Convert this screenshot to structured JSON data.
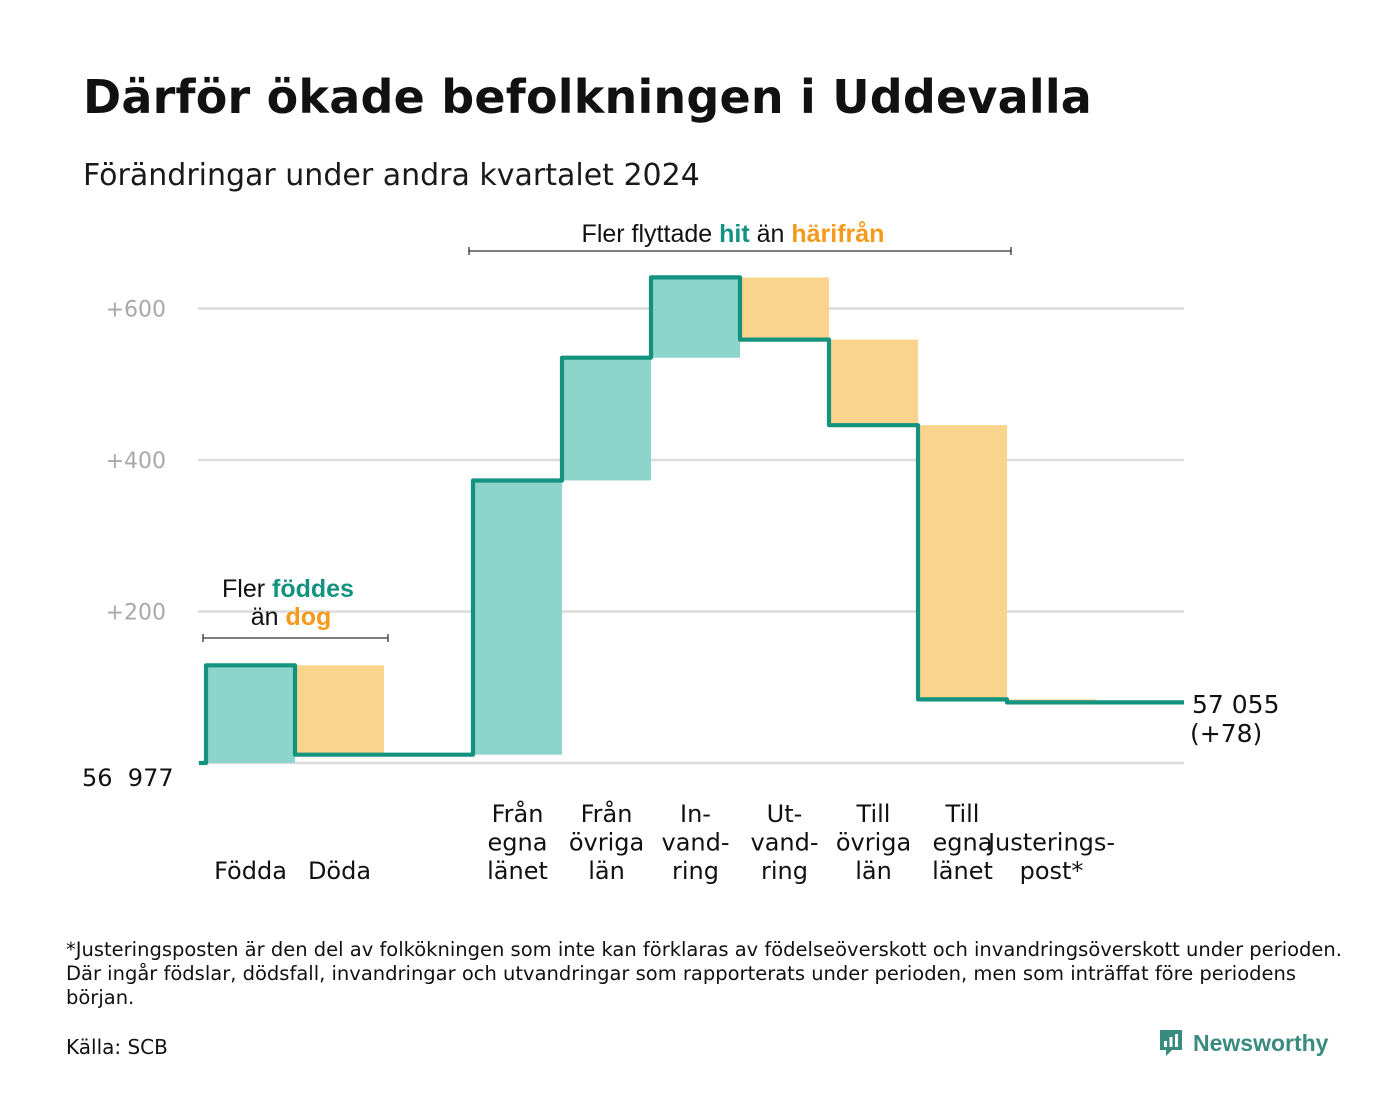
{
  "header": {
    "title": "Därför ökade befolkningen i Uddevalla",
    "subtitle": "Förändringar under andra kvartalet 2024"
  },
  "annotations": {
    "births_line1_prefix": "Fler ",
    "births_line1_highlight": "föddes",
    "births_line2_prefix": "än ",
    "births_line2_highlight": "dog",
    "migration_prefix": "Fler flyttade ",
    "migration_highlight_in": "hit",
    "migration_middle": " än ",
    "migration_highlight_out": "härifrån"
  },
  "chart_data": {
    "type": "bar",
    "subtype": "waterfall",
    "start_value": 56977,
    "start_label": "56  977",
    "end_label_line1": "57 055",
    "end_label_line2": "(+78)",
    "y_axis": {
      "ticks": [
        200,
        400,
        600
      ],
      "tick_labels": [
        "+200",
        "+400",
        "+600"
      ],
      "range": [
        0,
        650
      ],
      "grid": true
    },
    "categories": [
      {
        "label": [
          "Födda"
        ],
        "change": 129,
        "kind": "increase"
      },
      {
        "label": [
          "Döda"
        ],
        "change": -118,
        "kind": "decrease"
      },
      {
        "label": [],
        "change": 0,
        "kind": "gap"
      },
      {
        "label": [
          "Från",
          "egna",
          "länet"
        ],
        "change": 362,
        "kind": "increase"
      },
      {
        "label": [
          "Från",
          "övriga",
          "län"
        ],
        "change": 162,
        "kind": "increase"
      },
      {
        "label": [
          "In-",
          "vand-",
          "ring"
        ],
        "change": 106,
        "kind": "increase"
      },
      {
        "label": [
          "Ut-",
          "vand-",
          "ring"
        ],
        "change": -82,
        "kind": "decrease"
      },
      {
        "label": [
          "Till",
          "övriga",
          "län"
        ],
        "change": -113,
        "kind": "decrease"
      },
      {
        "label": [
          "Till",
          "egna",
          "länet"
        ],
        "change": -362,
        "kind": "decrease"
      },
      {
        "label": [
          "Justerings-",
          "post*"
        ],
        "change": -4,
        "kind": "decrease"
      }
    ],
    "colors": {
      "increase": "#8dd5cb",
      "decrease": "#fad48c",
      "line": "#13927f",
      "grid": "#dcdcdc",
      "tick_text": "#a8a8a8",
      "highlight_in": "#13927f",
      "highlight_out": "#f59a1a"
    }
  },
  "footer": {
    "footnote": "*Justeringsposten är den del av folkökningen som inte kan förklaras av födelseöverskott och invandringsöverskott under perioden. Där ingår födslar, dödsfall, invandringar och utvandringar som rapporterats under perioden, men som inträffat före periodens början.",
    "source": "Källa: SCB",
    "brand": "Newsworthy"
  }
}
